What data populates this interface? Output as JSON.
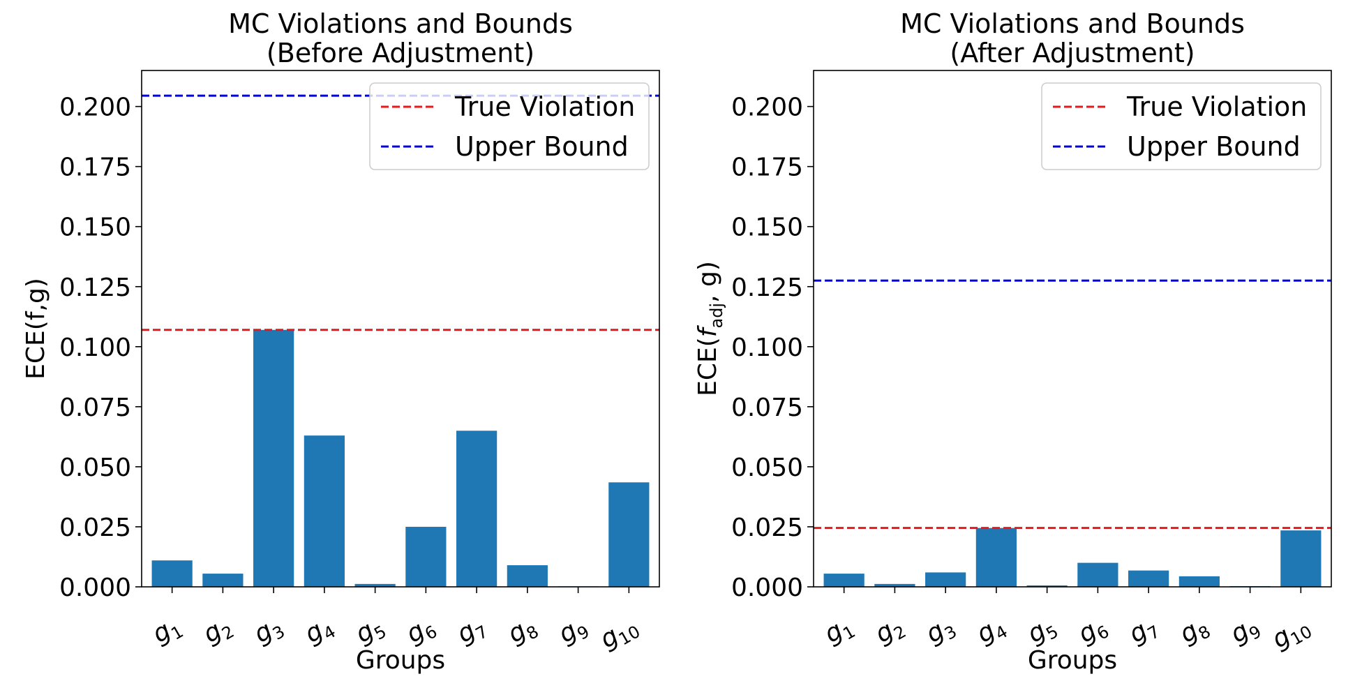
{
  "chart_data": [
    {
      "type": "bar",
      "title": "MC Violations and Bounds\n(Before Adjustment)",
      "xlabel": "Groups",
      "ylabel": "ECE(f,g)",
      "ylim": [
        0,
        0.215
      ],
      "yticks": [
        "0.000",
        "0.025",
        "0.050",
        "0.075",
        "0.100",
        "0.125",
        "0.150",
        "0.175",
        "0.200"
      ],
      "categories": [
        {
          "base": "g",
          "sub": "1"
        },
        {
          "base": "g",
          "sub": "2"
        },
        {
          "base": "g",
          "sub": "3"
        },
        {
          "base": "g",
          "sub": "4"
        },
        {
          "base": "g",
          "sub": "5"
        },
        {
          "base": "g",
          "sub": "6"
        },
        {
          "base": "g",
          "sub": "7"
        },
        {
          "base": "g",
          "sub": "8"
        },
        {
          "base": "g",
          "sub": "9"
        },
        {
          "base": "g",
          "sub": "10"
        }
      ],
      "values": [
        0.011,
        0.0055,
        0.107,
        0.063,
        0.0012,
        0.025,
        0.065,
        0.009,
        0.0002,
        0.0435
      ],
      "bar_color": "#1f77b4",
      "hlines": [
        {
          "name": "True Violation",
          "value": 0.107,
          "color": "#e31a1c"
        },
        {
          "name": "Upper Bound",
          "value": 0.2045,
          "color": "#0000d9"
        }
      ],
      "legend": "top-right",
      "grid": false
    },
    {
      "type": "bar",
      "title": "MC Violations and Bounds\n(After Adjustment)",
      "xlabel": "Groups",
      "ylabel": {
        "prefix": "ECE(",
        "italic": "f",
        "sub": "adj",
        "suffix": ", g)"
      },
      "ylim": [
        0,
        0.215
      ],
      "yticks": [
        "0.000",
        "0.025",
        "0.050",
        "0.075",
        "0.100",
        "0.125",
        "0.150",
        "0.175",
        "0.200"
      ],
      "categories": [
        {
          "base": "g",
          "sub": "1"
        },
        {
          "base": "g",
          "sub": "2"
        },
        {
          "base": "g",
          "sub": "3"
        },
        {
          "base": "g",
          "sub": "4"
        },
        {
          "base": "g",
          "sub": "5"
        },
        {
          "base": "g",
          "sub": "6"
        },
        {
          "base": "g",
          "sub": "7"
        },
        {
          "base": "g",
          "sub": "8"
        },
        {
          "base": "g",
          "sub": "9"
        },
        {
          "base": "g",
          "sub": "10"
        }
      ],
      "values": [
        0.0055,
        0.0012,
        0.006,
        0.0245,
        0.0006,
        0.01,
        0.0068,
        0.0044,
        0.0003,
        0.0235
      ],
      "bar_color": "#1f77b4",
      "hlines": [
        {
          "name": "True Violation",
          "value": 0.0245,
          "color": "#e31a1c"
        },
        {
          "name": "Upper Bound",
          "value": 0.1275,
          "color": "#0000d9"
        }
      ],
      "legend": "top-right",
      "grid": false
    }
  ]
}
